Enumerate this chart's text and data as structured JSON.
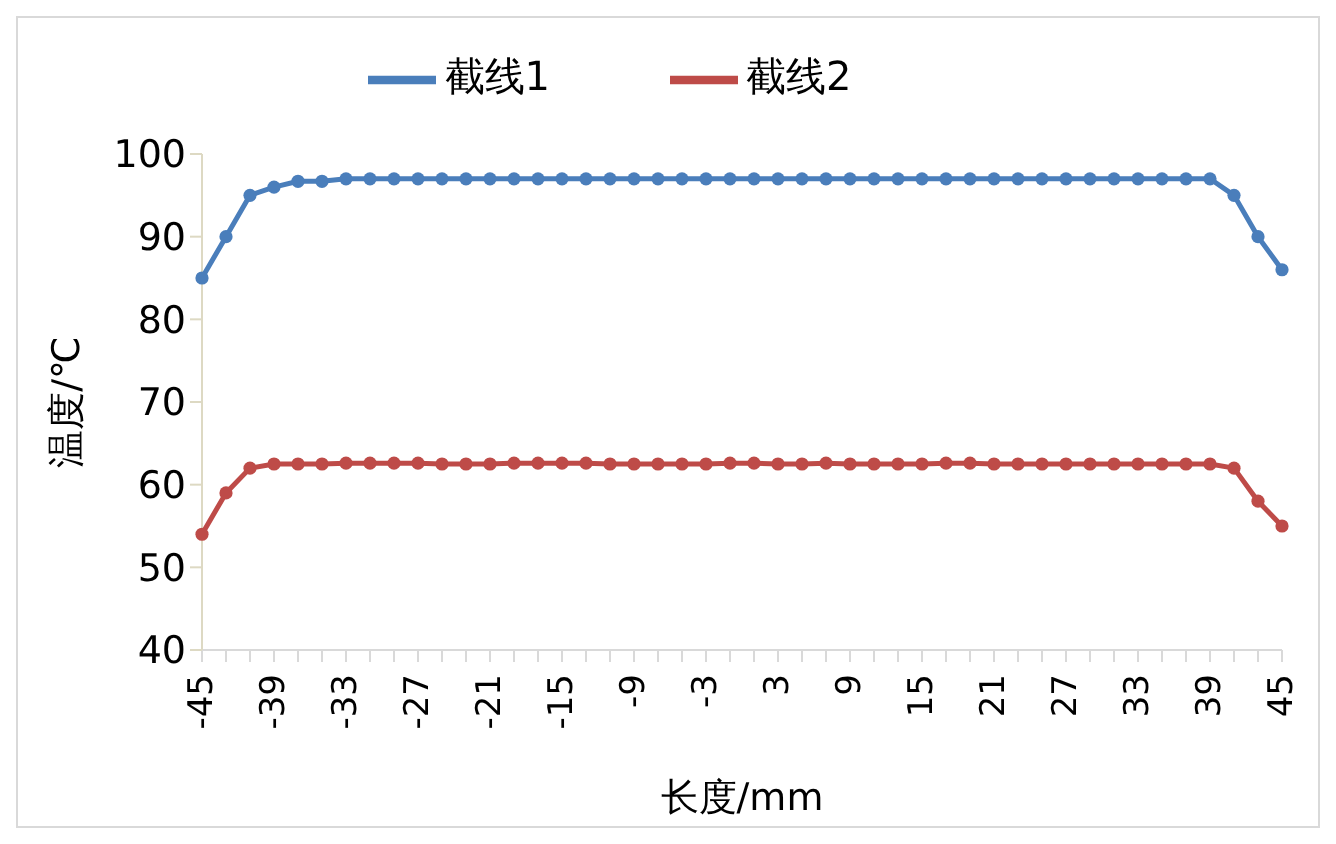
{
  "chart_data": {
    "type": "line",
    "xlabel": "长度/mm",
    "ylabel": "温度/℃",
    "categories": [
      "-45",
      null,
      null,
      "-39",
      null,
      null,
      "-33",
      null,
      null,
      "-27",
      null,
      null,
      "-21",
      null,
      null,
      "-15",
      null,
      null,
      "-9",
      null,
      null,
      "-3",
      null,
      null,
      "3",
      null,
      null,
      "9",
      null,
      null,
      "15",
      null,
      null,
      "21",
      null,
      null,
      "27",
      null,
      null,
      "33",
      null,
      null,
      "39",
      null,
      null,
      "45"
    ],
    "series": [
      {
        "name": "截线1",
        "color": "#4a7ebb",
        "values": [
          85,
          90,
          95,
          96,
          96.7,
          96.7,
          97,
          97,
          97,
          97,
          97,
          97,
          97,
          97,
          97,
          97,
          97,
          97,
          97,
          97,
          97,
          97,
          97,
          97,
          97,
          97,
          97,
          97,
          97,
          97,
          97,
          97,
          97,
          97,
          97,
          97,
          97,
          97,
          97,
          97,
          97,
          97,
          97,
          95,
          90,
          86
        ]
      },
      {
        "name": "截线2",
        "color": "#be4b48",
        "values": [
          54,
          59,
          62,
          62.5,
          62.5,
          62.5,
          62.6,
          62.6,
          62.6,
          62.6,
          62.5,
          62.5,
          62.5,
          62.6,
          62.6,
          62.6,
          62.6,
          62.5,
          62.5,
          62.5,
          62.5,
          62.5,
          62.6,
          62.6,
          62.5,
          62.5,
          62.6,
          62.5,
          62.5,
          62.5,
          62.5,
          62.6,
          62.6,
          62.5,
          62.5,
          62.5,
          62.5,
          62.5,
          62.5,
          62.5,
          62.5,
          62.5,
          62.5,
          62,
          58,
          55
        ]
      }
    ],
    "ylim": [
      40,
      100
    ],
    "yticks": [
      40,
      50,
      60,
      70,
      80,
      90,
      100
    ],
    "grid": false,
    "legend": "top",
    "marker": "circle",
    "line_style": "solid"
  }
}
